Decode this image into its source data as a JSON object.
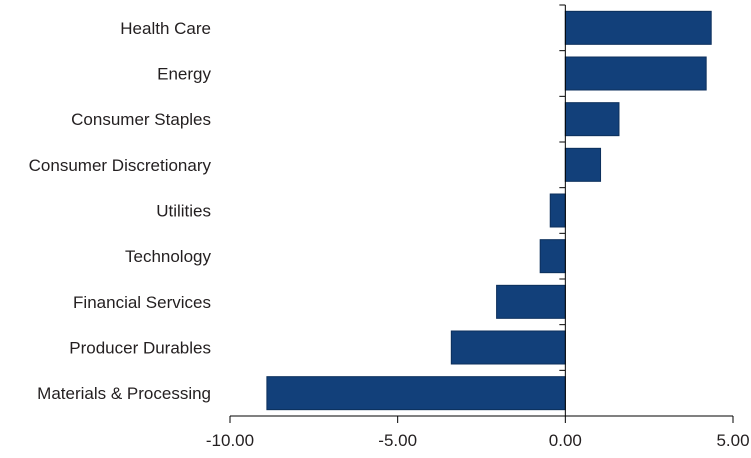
{
  "colors": {
    "bar": "#12407a",
    "bar_edge": "#0c2f5c",
    "axis": "#000000",
    "text": "#231f20"
  },
  "chart_data": {
    "type": "bar",
    "orientation": "horizontal",
    "title": "",
    "xlabel": "",
    "ylabel": "",
    "categories": [
      "Health Care",
      "Energy",
      "Consumer Staples",
      "Consumer Discretionary",
      "Utilities",
      "Technology",
      "Financial Services",
      "Producer Durables",
      "Materials & Processing"
    ],
    "values": [
      4.35,
      4.2,
      1.6,
      1.05,
      -0.45,
      -0.75,
      -2.05,
      -3.4,
      -8.9
    ],
    "xlim": [
      -10,
      5
    ],
    "xticks": [
      -10,
      -5,
      0,
      5
    ],
    "xtick_labels": [
      "-10.00",
      "-5.00",
      "0.00",
      "5.00"
    ],
    "grid": false,
    "legend": "none"
  }
}
